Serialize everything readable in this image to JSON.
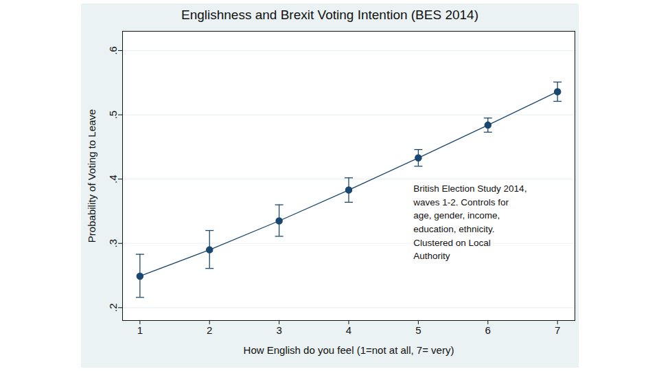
{
  "chart_data": {
    "type": "line",
    "title": "Englishness and Brexit Voting Intention (BES 2014)",
    "x_label": "How English do you feel (1=not at all, 7= very)",
    "y_label": "Probability of Voting to Leave",
    "x": [
      1,
      2,
      3,
      4,
      5,
      6,
      7
    ],
    "values": [
      0.249,
      0.29,
      0.335,
      0.383,
      0.433,
      0.484,
      0.536
    ],
    "ci_lower": [
      0.216,
      0.261,
      0.311,
      0.364,
      0.42,
      0.473,
      0.521
    ],
    "ci_upper": [
      0.283,
      0.32,
      0.36,
      0.402,
      0.446,
      0.495,
      0.551
    ],
    "color": "#1a476f",
    "marker": "circle",
    "grid": true,
    "xlim": [
      0.75,
      7.25
    ],
    "xticks": [
      1,
      2,
      3,
      4,
      5,
      6,
      7
    ],
    "ylim": [
      0.18,
      0.63
    ],
    "yticks": [
      {
        "value": 0.2,
        "label": ".2"
      },
      {
        "value": 0.3,
        "label": ".3"
      },
      {
        "value": 0.4,
        "label": ".4"
      },
      {
        "value": 0.5,
        "label": ".5"
      },
      {
        "value": 0.6,
        "label": ".6"
      }
    ],
    "annotation": {
      "text": [
        "British Election Study 2014,",
        "waves 1-2. Controls for",
        "age, gender, income,",
        "education, ethnicity.",
        "Clustered on Local",
        "Authority"
      ],
      "x": 4.93,
      "y": 0.395
    }
  }
}
